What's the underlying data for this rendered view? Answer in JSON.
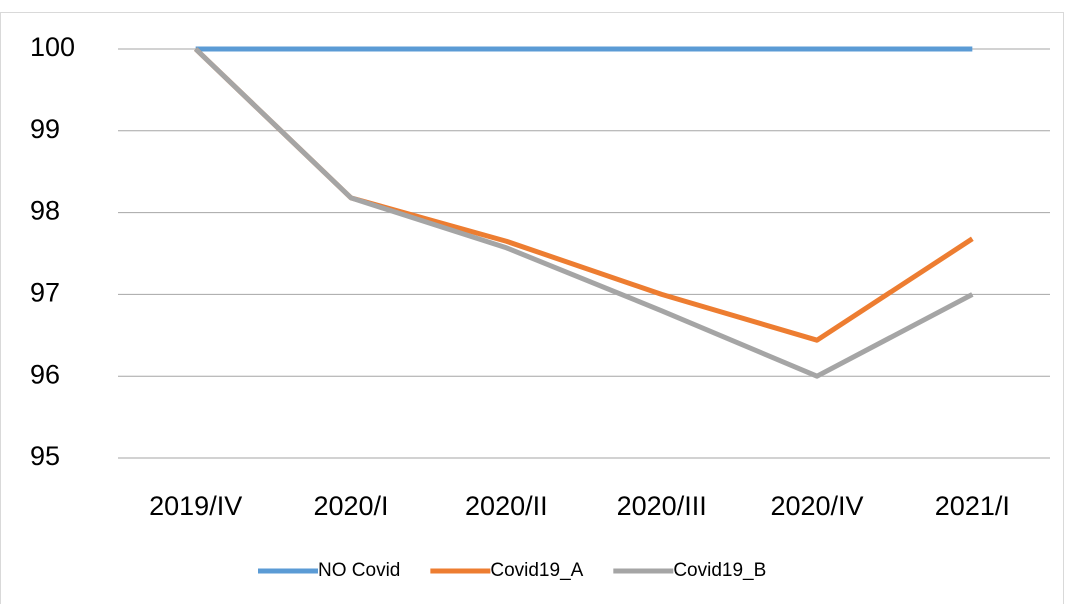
{
  "chart_data": {
    "type": "line",
    "categories": [
      "2019/IV",
      "2020/I",
      "2020/II",
      "2020/III",
      "2020/IV",
      "2021/I"
    ],
    "series": [
      {
        "name": "NO Covid",
        "color": "#5b9bd5",
        "values": [
          100,
          100,
          100,
          100,
          100,
          100
        ]
      },
      {
        "name": "Covid19_A",
        "color": "#ed7d31",
        "values": [
          100,
          98.18,
          97.65,
          97.0,
          96.44,
          97.68
        ]
      },
      {
        "name": "Covid19_B",
        "color": "#a5a5a5",
        "values": [
          100,
          98.18,
          97.57,
          96.8,
          96.0,
          97.0
        ]
      }
    ],
    "ylim": [
      95,
      100
    ],
    "yticks": [
      95,
      96,
      97,
      98,
      99,
      100
    ],
    "grid": true,
    "legend": "bottom"
  }
}
